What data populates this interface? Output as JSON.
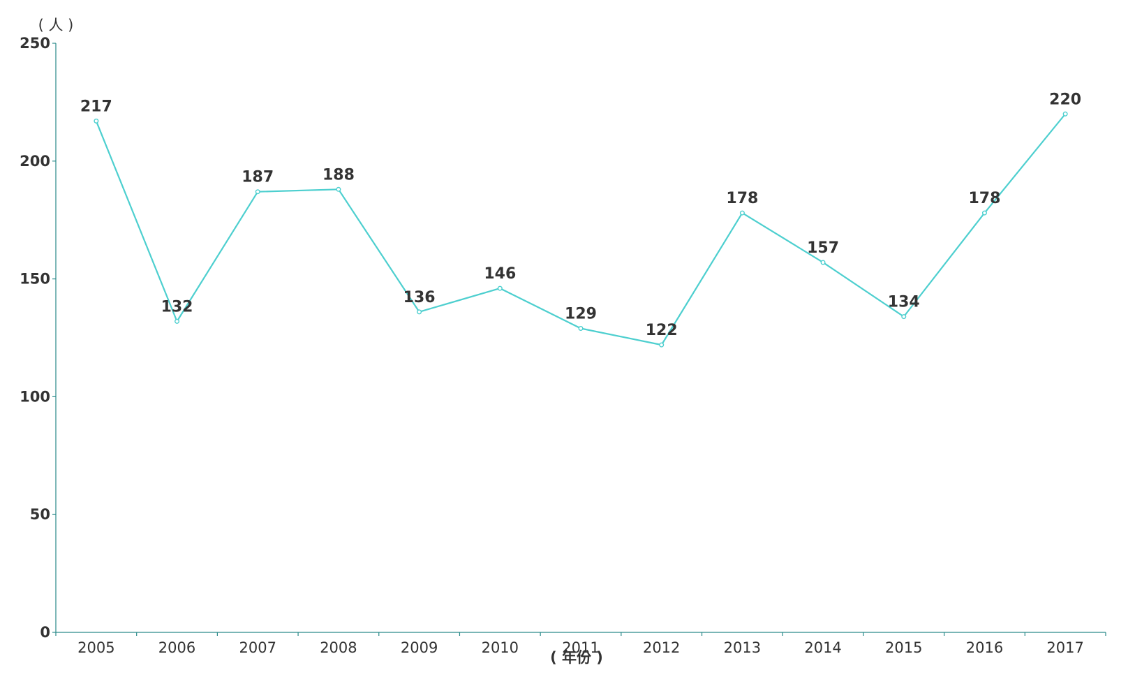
{
  "chart_data": {
    "type": "line",
    "title": "",
    "xlabel": "( 年份 )",
    "ylabel": "( 人 )",
    "categories": [
      "2005",
      "2006",
      "2007",
      "2008",
      "2009",
      "2010",
      "2011",
      "2012",
      "2013",
      "2014",
      "2015",
      "2016",
      "2017"
    ],
    "series": [
      {
        "values": [
          217,
          132,
          187,
          188,
          136,
          146,
          129,
          122,
          178,
          157,
          134,
          178,
          220
        ],
        "color": "#4dcfcf"
      }
    ],
    "ylim": [
      0,
      250
    ],
    "yticks": [
      0,
      50,
      100,
      150,
      200,
      250
    ],
    "grid": false,
    "legend": "none",
    "data_labels": true,
    "axis_color": "#2a8a8a"
  }
}
